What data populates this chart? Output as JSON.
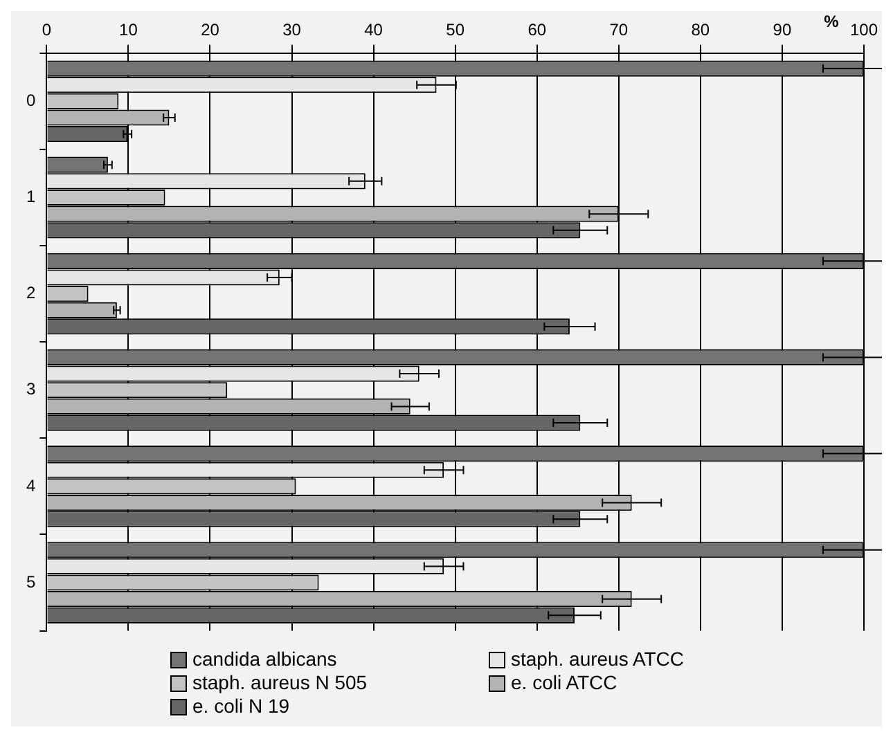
{
  "chart_data": {
    "type": "bar",
    "orientation": "horizontal",
    "xlabel": "%",
    "categories": [
      "0",
      "1",
      "2",
      "3",
      "4",
      "5"
    ],
    "xlim": [
      0,
      100
    ],
    "xticks": [
      0,
      10,
      20,
      30,
      40,
      50,
      60,
      70,
      80,
      90,
      100
    ],
    "grid": "x",
    "legend": "bottom",
    "series": [
      {
        "name": "candida albicans",
        "color": "#737373",
        "values": [
          100,
          7.5,
          100,
          100,
          100,
          100
        ],
        "errors": [
          5,
          0.5,
          5,
          5,
          5,
          5
        ]
      },
      {
        "name": "staph. aureus ATCC",
        "color": "#e6e6e6",
        "values": [
          47.7,
          39,
          28.5,
          45.6,
          48.6,
          48.6
        ],
        "errors": [
          2.4,
          2,
          1.5,
          2.4,
          2.4,
          2.4
        ]
      },
      {
        "name": "staph. aureus N 505",
        "color": "#c4c4c4",
        "values": [
          8.8,
          14.5,
          5.1,
          22.1,
          30.5,
          33.3
        ]
      },
      {
        "name": "e. coli ATCC",
        "color": "#b3b3b3",
        "values": [
          15,
          70,
          8.6,
          44.5,
          71.6,
          71.6
        ],
        "errors": [
          0.7,
          3.6,
          0.4,
          2.3,
          3.6,
          3.6
        ]
      },
      {
        "name": "e. coli N 19",
        "color": "#666666",
        "values": [
          9.9,
          65.3,
          64,
          65.3,
          65.3,
          64.6
        ],
        "errors": [
          0.5,
          3.3,
          3.1,
          3.3,
          3.3,
          3.2
        ]
      }
    ]
  }
}
